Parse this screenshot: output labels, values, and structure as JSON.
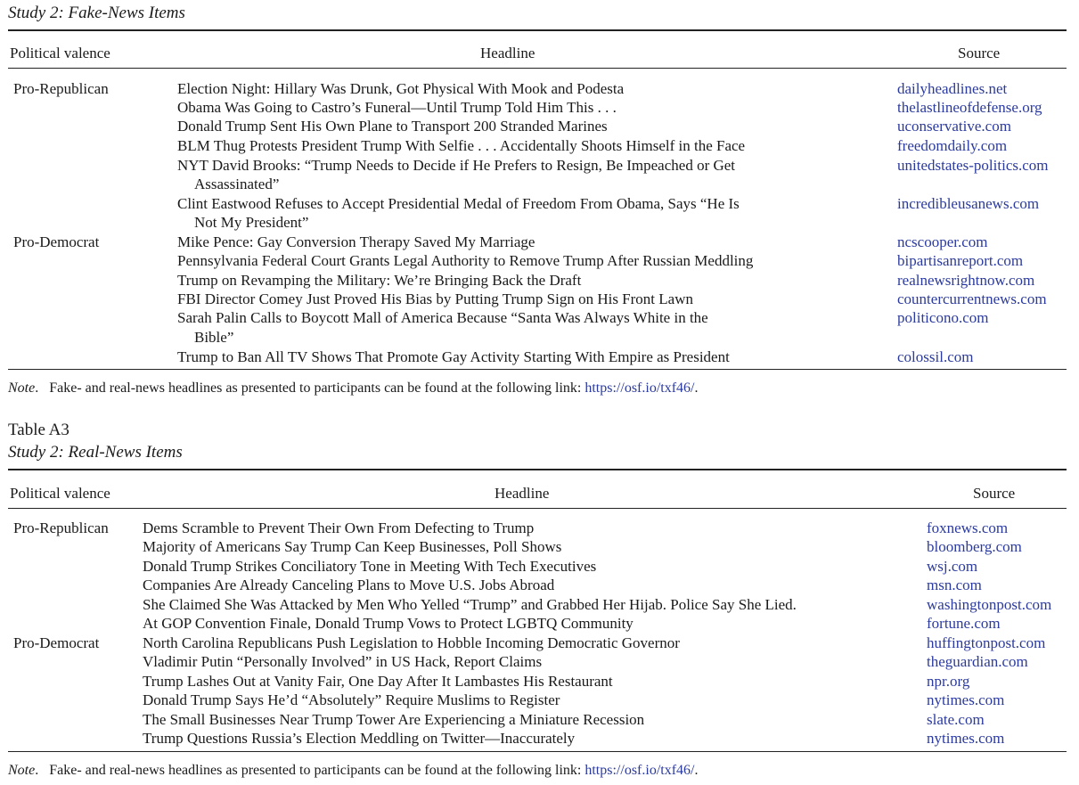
{
  "colors": {
    "link": "#2b3a9e",
    "text": "#1a1a1a"
  },
  "table_a2": {
    "caption": "Study 2: Fake-News Items",
    "headers": {
      "valence": "Political valence",
      "headline": "Headline",
      "source": "Source"
    },
    "group_pro_republican": "Pro-Republican",
    "group_pro_democrat": "Pro-Democrat",
    "rows": [
      {
        "headline": "Election Night: Hillary Was Drunk, Got Physical With Mook and Podesta",
        "source": "dailyheadlines.net"
      },
      {
        "headline": "Obama Was Going to Castro’s Funeral—Until Trump Told Him This . . .",
        "source": "thelastlineofdefense.org"
      },
      {
        "headline": "Donald Trump Sent His Own Plane to Transport 200 Stranded Marines",
        "source": "uconservative.com"
      },
      {
        "headline": "BLM Thug Protests President Trump With Selfie . . . Accidentally Shoots Himself in the Face",
        "source": "freedomdaily.com"
      },
      {
        "headline": "NYT David Brooks: “Trump Needs to Decide if He Prefers to Resign, Be Impeached or Get",
        "headline_cont": "Assassinated”",
        "source": "unitedstates-politics.com"
      },
      {
        "headline": "Clint Eastwood Refuses to Accept Presidential Medal of Freedom From Obama, Says “He Is",
        "headline_cont": "Not My President”",
        "source": "incredibleusanews.com"
      },
      {
        "headline": "Mike Pence: Gay Conversion Therapy Saved My Marriage",
        "source": "ncscooper.com"
      },
      {
        "headline": "Pennsylvania Federal Court Grants Legal Authority to Remove Trump After Russian Meddling",
        "source": "bipartisanreport.com"
      },
      {
        "headline": "Trump on Revamping the Military: We’re Bringing Back the Draft",
        "source": "realnewsrightnow.com"
      },
      {
        "headline": "FBI Director Comey Just Proved His Bias by Putting Trump Sign on His Front Lawn",
        "source": "countercurrentnews.com"
      },
      {
        "headline": "Sarah Palin Calls to Boycott Mall of America Because “Santa Was Always White in the",
        "headline_cont": "Bible”",
        "source": "politicono.com"
      },
      {
        "headline": "Trump to Ban All TV Shows That Promote Gay Activity Starting With Empire as President",
        "source": "colossil.com"
      }
    ],
    "note_label": "Note",
    "note_text": "Fake- and real-news headlines as presented to participants can be found at the following link:",
    "note_link": "https://osf.io/txf46/",
    "note_end": "."
  },
  "table_a3": {
    "label": "Table A3",
    "caption": "Study 2: Real-News Items",
    "headers": {
      "valence": "Political valence",
      "headline": "Headline",
      "source": "Source"
    },
    "group_pro_republican": "Pro-Republican",
    "group_pro_democrat": "Pro-Democrat",
    "rows": [
      {
        "headline": "Dems Scramble to Prevent Their Own From Defecting to Trump",
        "source": "foxnews.com"
      },
      {
        "headline": "Majority of Americans Say Trump Can Keep Businesses, Poll Shows",
        "source": "bloomberg.com"
      },
      {
        "headline": "Donald Trump Strikes Conciliatory Tone in Meeting With Tech Executives",
        "source": "wsj.com"
      },
      {
        "headline": "Companies Are Already Canceling Plans to Move U.S. Jobs Abroad",
        "source": "msn.com"
      },
      {
        "headline": "She Claimed She Was Attacked by Men Who Yelled “Trump” and Grabbed Her Hijab. Police Say She Lied.",
        "source": "washingtonpost.com"
      },
      {
        "headline": "At GOP Convention Finale, Donald Trump Vows to Protect LGBTQ Community",
        "source": "fortune.com"
      },
      {
        "headline": "North Carolina Republicans Push Legislation to Hobble Incoming Democratic Governor",
        "source": "huffingtonpost.com"
      },
      {
        "headline": "Vladimir Putin “Personally Involved” in US Hack, Report Claims",
        "source": "theguardian.com"
      },
      {
        "headline": "Trump Lashes Out at Vanity Fair, One Day After It Lambastes His Restaurant",
        "source": "npr.org"
      },
      {
        "headline": "Donald Trump Says He’d “Absolutely” Require Muslims to Register",
        "source": "nytimes.com"
      },
      {
        "headline": "The Small Businesses Near Trump Tower Are Experiencing a Miniature Recession",
        "source": "slate.com"
      },
      {
        "headline": "Trump Questions Russia’s Election Meddling on Twitter—Inaccurately",
        "source": "nytimes.com"
      }
    ],
    "note_label": "Note",
    "note_text": "Fake- and real-news headlines as presented to participants can be found at the following link:",
    "note_link": "https://osf.io/txf46/",
    "note_end": "."
  }
}
